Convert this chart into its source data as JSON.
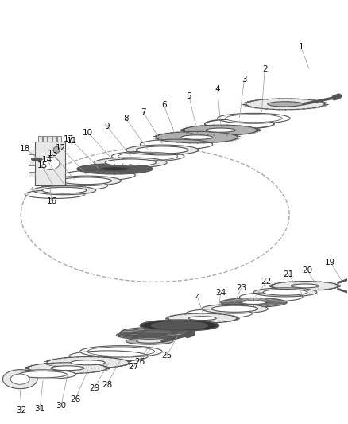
{
  "bg_color": "#ffffff",
  "fig_width": 4.38,
  "fig_height": 5.33,
  "dpi": 100,
  "line_color": "#555555",
  "label_fontsize": 7.5,
  "label_color": "#111111"
}
